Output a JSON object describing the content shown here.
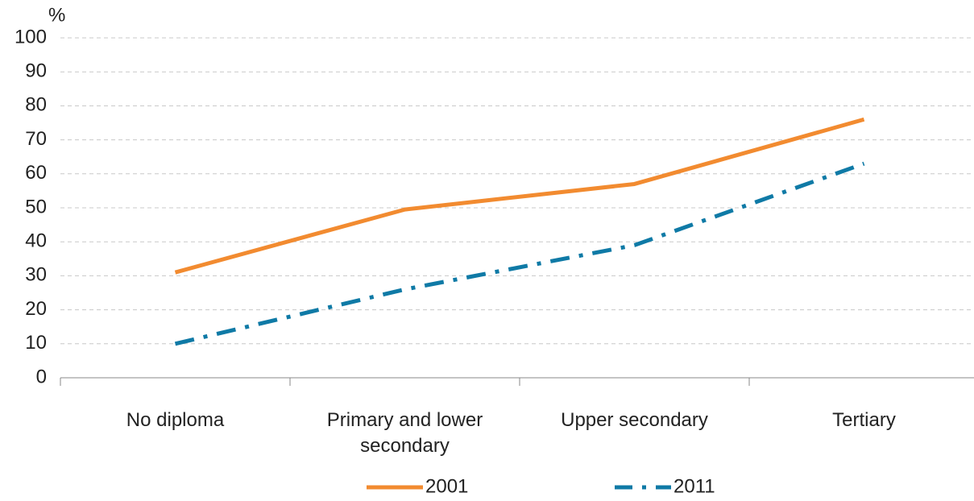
{
  "chart_data": {
    "type": "line",
    "y_label": "%",
    "categories": [
      "No diploma",
      "Primary and lower secondary",
      "Upper secondary",
      "Tertiary"
    ],
    "series": [
      {
        "name": "2001",
        "color": "#f28b30",
        "style": "solid",
        "values": [
          31,
          49.5,
          57,
          76
        ]
      },
      {
        "name": "2011",
        "color": "#0f7aa6",
        "style": "dashdot",
        "values": [
          10,
          26,
          39,
          63
        ]
      }
    ],
    "ylim": [
      0,
      100
    ],
    "yticks": [
      0,
      10,
      20,
      30,
      40,
      50,
      60,
      70,
      80,
      90,
      100
    ],
    "grid": true,
    "legend": "bottom"
  }
}
